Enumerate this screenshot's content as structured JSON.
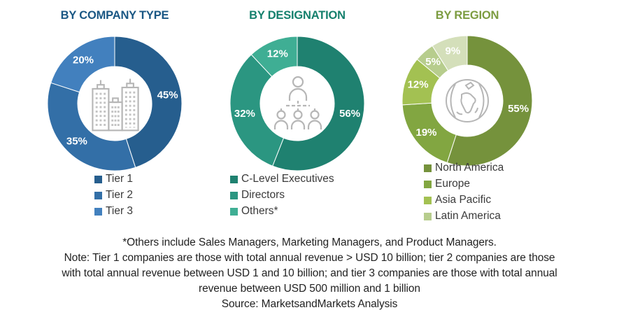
{
  "chart_data": [
    {
      "type": "pie",
      "title": "BY COMPANY TYPE",
      "title_color": "#1A5784",
      "icon": "buildings-icon",
      "legend_position": "bottom",
      "segments": [
        {
          "label": "Tier 1",
          "value": 45,
          "color": "#265E8E"
        },
        {
          "label": "Tier 2",
          "value": 35,
          "color": "#336FA7"
        },
        {
          "label": "Tier 3",
          "value": 20,
          "color": "#4280BE"
        }
      ],
      "legend": [
        {
          "label": "Tier 1",
          "color": "#265E8E"
        },
        {
          "label": "Tier 2",
          "color": "#336FA7"
        },
        {
          "label": "Tier 3",
          "color": "#4280BE"
        }
      ]
    },
    {
      "type": "pie",
      "title": "BY DESIGNATION",
      "title_color": "#15806D",
      "icon": "org-people-icon",
      "legend_position": "bottom",
      "segments": [
        {
          "label": "C-Level Executives",
          "value": 56,
          "color": "#1F8170"
        },
        {
          "label": "Directors",
          "value": 32,
          "color": "#2B9681"
        },
        {
          "label": "Others*",
          "value": 12,
          "color": "#3FAE94"
        }
      ],
      "legend": [
        {
          "label": "C-Level Executives",
          "color": "#1F8170"
        },
        {
          "label": "Directors",
          "color": "#2B9681"
        },
        {
          "label": "Others*",
          "color": "#3FAE94"
        }
      ]
    },
    {
      "type": "pie",
      "title": "BY REGION",
      "title_color": "#7C9C40",
      "icon": "globe-icon",
      "legend_position": "bottom",
      "segments": [
        {
          "label": "North America",
          "value": 55,
          "color": "#75923C"
        },
        {
          "label": "Europe",
          "value": 19,
          "color": "#82A641"
        },
        {
          "label": "Asia Pacific",
          "value": 12,
          "color": "#A3C152"
        },
        {
          "label": "Latin America",
          "value": 5,
          "color": "#B7CD8D"
        },
        {
          "label": "",
          "value": 9,
          "color": "#D4DFBA"
        }
      ],
      "legend": [
        {
          "label": "North America",
          "color": "#75923C"
        },
        {
          "label": "Europe",
          "color": "#82A641"
        },
        {
          "label": "Asia Pacific",
          "color": "#A3C152"
        },
        {
          "label": "Latin America",
          "color": "#B7CD8D"
        }
      ]
    }
  ],
  "notes": {
    "others": "*Others include Sales Managers, Marketing Managers, and Product Managers.",
    "note_lines": [
      "Note: Tier 1 companies are those with total annual revenue > USD 10 billion; tier 2 companies are those",
      "with total annual revenue between USD 1 and 10 billion; and tier 3 companies are those with total annual",
      "revenue between USD 500 million and 1 billion"
    ],
    "source": "Source: MarketsandMarkets Analysis"
  }
}
